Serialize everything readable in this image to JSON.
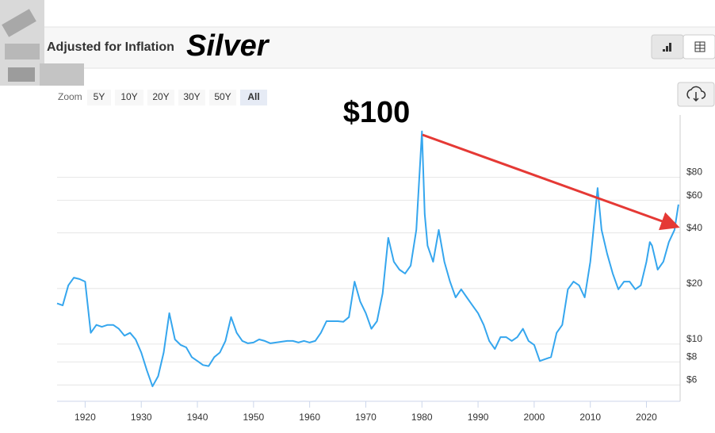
{
  "header": {
    "subtitle": "Adjusted for Inflation",
    "title": "Silver"
  },
  "zoom": {
    "label": "Zoom",
    "buttons": [
      "5Y",
      "10Y",
      "20Y",
      "30Y",
      "50Y",
      "All"
    ],
    "active": 5
  },
  "chart_data": {
    "type": "line",
    "annotation": "$100",
    "color": "#35a6ee",
    "log_scale": true,
    "grid": true,
    "xlim": [
      1915,
      2026
    ],
    "xticks": [
      1920,
      1930,
      1940,
      1950,
      1960,
      1970,
      1980,
      1990,
      2000,
      2010,
      2020
    ],
    "ylim": [
      4.9,
      174
    ],
    "yticks": [
      {
        "value": 6,
        "label": "$6"
      },
      {
        "value": 8,
        "label": "$8"
      },
      {
        "value": 10,
        "label": "$10"
      },
      {
        "value": 20,
        "label": "$20"
      },
      {
        "value": 40,
        "label": "$40"
      },
      {
        "value": 60,
        "label": "$60"
      },
      {
        "value": 80,
        "label": "$80"
      }
    ],
    "x": [
      1915,
      1916,
      1917,
      1918,
      1919,
      1920,
      1921,
      1922,
      1923,
      1924,
      1925,
      1926,
      1927,
      1928,
      1929,
      1930,
      1931,
      1932,
      1933,
      1934,
      1935,
      1936,
      1937,
      1938,
      1939,
      1940,
      1941,
      1942,
      1943,
      1944,
      1945,
      1946,
      1947,
      1948,
      1949,
      1950,
      1951,
      1952,
      1953,
      1954,
      1955,
      1956,
      1957,
      1958,
      1959,
      1960,
      1961,
      1962,
      1963,
      1964,
      1965,
      1966,
      1967,
      1968,
      1969,
      1970,
      1971,
      1972,
      1973,
      1974,
      1975,
      1976,
      1977,
      1978,
      1979,
      1980,
      1980.5,
      1981,
      1982,
      1983,
      1984,
      1985,
      1986,
      1987,
      1988,
      1989,
      1990,
      1991,
      1992,
      1993,
      1994,
      1995,
      1996,
      1997,
      1998,
      1999,
      2000,
      2001,
      2002,
      2003,
      2004,
      2005,
      2006,
      2007,
      2008,
      2009,
      2010,
      2011.3,
      2012,
      2013,
      2014,
      2015,
      2016,
      2017,
      2018,
      2019,
      2020,
      2020.6,
      2021,
      2022,
      2023,
      2024,
      2025,
      2025.7
    ],
    "values": [
      16.6,
      16.2,
      20.8,
      22.9,
      22.5,
      21.8,
      11.5,
      12.7,
      12.4,
      12.7,
      12.7,
      12.1,
      11.1,
      11.5,
      10.6,
      9.0,
      7.2,
      5.9,
      6.7,
      9.0,
      14.7,
      10.6,
      9.9,
      9.6,
      8.5,
      8.1,
      7.7,
      7.6,
      8.5,
      9.0,
      10.4,
      14.0,
      11.5,
      10.4,
      10.1,
      10.2,
      10.6,
      10.4,
      10.1,
      10.2,
      10.3,
      10.4,
      10.4,
      10.2,
      10.4,
      10.2,
      10.4,
      11.5,
      13.3,
      13.3,
      13.3,
      13.2,
      14.0,
      21.8,
      17.0,
      14.7,
      12.1,
      13.3,
      18.8,
      37.6,
      27.9,
      25.3,
      24.1,
      26.6,
      41.5,
      142,
      50.6,
      34.1,
      27.9,
      41.5,
      27.9,
      21.8,
      17.9,
      19.8,
      17.9,
      16.2,
      14.7,
      12.7,
      10.4,
      9.4,
      10.9,
      10.9,
      10.4,
      10.9,
      12.1,
      10.4,
      9.9,
      8.1,
      8.3,
      8.5,
      11.5,
      12.7,
      19.8,
      21.8,
      20.8,
      17.9,
      27.9,
      70,
      41.5,
      30.9,
      24.1,
      19.8,
      21.8,
      21.8,
      19.8,
      20.8,
      27.9,
      35.7,
      34.1,
      25.3,
      27.9,
      35.7,
      41.5,
      57
    ]
  }
}
